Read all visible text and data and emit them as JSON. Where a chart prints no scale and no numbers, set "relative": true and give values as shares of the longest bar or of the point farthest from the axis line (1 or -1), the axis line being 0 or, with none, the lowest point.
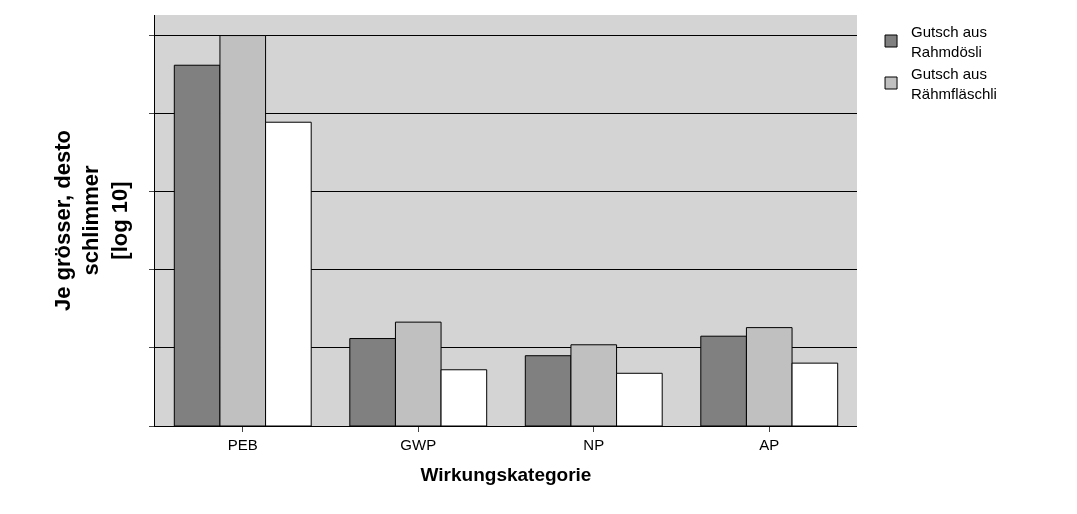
{
  "chart_data": {
    "type": "bar",
    "relative": true,
    "xlabel": "Wirkungskategorie",
    "ylabel": "Je grösser, desto\nschlimmer\n[log 10]",
    "categories": [
      "PEB",
      "GWP",
      "NP",
      "AP"
    ],
    "series": [
      {
        "name": "Gutsch aus\nRahmdösli",
        "color": "#808080",
        "values": [
          0.924,
          0.224,
          0.18,
          0.23
        ]
      },
      {
        "name": "Gutsch aus\nRähmfläschli",
        "color": "#c0c0c0",
        "values": [
          1,
          0.266,
          0.208,
          0.252
        ]
      },
      {
        "color": "#ffffff",
        "values": [
          0.778,
          0.144,
          0.135,
          0.161
        ]
      }
    ],
    "grid": "y",
    "legend": "top right"
  }
}
